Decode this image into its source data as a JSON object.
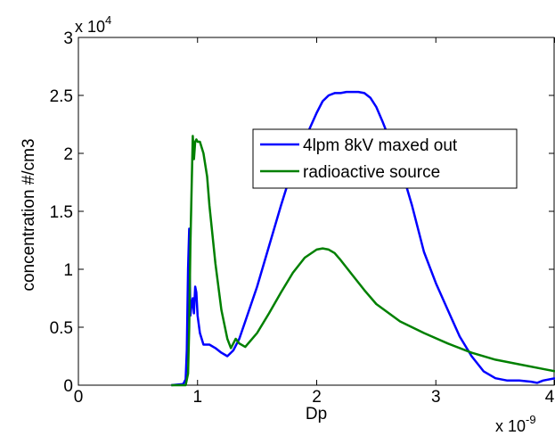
{
  "chart_data": {
    "type": "line",
    "xlabel": "Dp",
    "ylabel": "concentration #/cm3",
    "x_exponent_label": "x 10",
    "x_exponent_power": "-9",
    "y_exponent_label": "x 10",
    "y_exponent_power": "4",
    "xlim": [
      0,
      4
    ],
    "ylim": [
      0,
      3
    ],
    "x_ticks": [
      "0",
      "1",
      "2",
      "3",
      "4"
    ],
    "y_ticks": [
      "0",
      "0.5",
      "1",
      "1.5",
      "2",
      "2.5",
      "3"
    ],
    "grid": false,
    "legend_position": "upper-center-right",
    "series": [
      {
        "name": "4lpm 8kV maxed out",
        "color": "#0000ff",
        "x": [
          0.78,
          0.88,
          0.9,
          0.91,
          0.92,
          0.93,
          0.94,
          0.95,
          0.96,
          0.97,
          0.98,
          0.99,
          1.0,
          1.02,
          1.05,
          1.1,
          1.15,
          1.2,
          1.25,
          1.3,
          1.35,
          1.4,
          1.5,
          1.6,
          1.7,
          1.8,
          1.9,
          2.0,
          2.05,
          2.1,
          2.15,
          2.2,
          2.25,
          2.3,
          2.35,
          2.4,
          2.45,
          2.5,
          2.55,
          2.6,
          2.7,
          2.8,
          2.9,
          3.0,
          3.1,
          3.2,
          3.3,
          3.4,
          3.5,
          3.6,
          3.7,
          3.8,
          3.85,
          3.9,
          4.0
        ],
        "y": [
          0.0,
          0.01,
          0.05,
          0.3,
          1.0,
          1.35,
          0.6,
          0.7,
          0.75,
          0.62,
          0.85,
          0.8,
          0.6,
          0.45,
          0.35,
          0.35,
          0.32,
          0.28,
          0.25,
          0.3,
          0.4,
          0.55,
          0.85,
          1.2,
          1.55,
          1.88,
          2.12,
          2.35,
          2.45,
          2.5,
          2.52,
          2.52,
          2.53,
          2.53,
          2.53,
          2.52,
          2.48,
          2.4,
          2.28,
          2.15,
          1.9,
          1.55,
          1.15,
          0.88,
          0.65,
          0.42,
          0.25,
          0.12,
          0.06,
          0.04,
          0.04,
          0.03,
          0.02,
          0.04,
          0.06
        ]
      },
      {
        "name": "radioactive source",
        "color": "#008000",
        "x": [
          0.78,
          0.9,
          0.92,
          0.93,
          0.94,
          0.95,
          0.96,
          0.97,
          0.98,
          0.99,
          1.0,
          1.02,
          1.05,
          1.08,
          1.1,
          1.15,
          1.2,
          1.25,
          1.28,
          1.32,
          1.35,
          1.4,
          1.5,
          1.6,
          1.7,
          1.8,
          1.9,
          2.0,
          2.05,
          2.1,
          2.15,
          2.2,
          2.3,
          2.4,
          2.5,
          2.7,
          2.9,
          3.1,
          3.3,
          3.5,
          3.7,
          3.9,
          4.0
        ],
        "y": [
          0.0,
          0.0,
          0.1,
          0.5,
          1.2,
          1.7,
          2.15,
          1.95,
          2.1,
          2.12,
          2.1,
          2.1,
          2.0,
          1.8,
          1.55,
          1.05,
          0.65,
          0.4,
          0.32,
          0.4,
          0.36,
          0.33,
          0.45,
          0.62,
          0.8,
          0.97,
          1.1,
          1.17,
          1.18,
          1.17,
          1.14,
          1.08,
          0.95,
          0.82,
          0.7,
          0.55,
          0.45,
          0.36,
          0.28,
          0.22,
          0.18,
          0.14,
          0.12
        ]
      }
    ]
  }
}
